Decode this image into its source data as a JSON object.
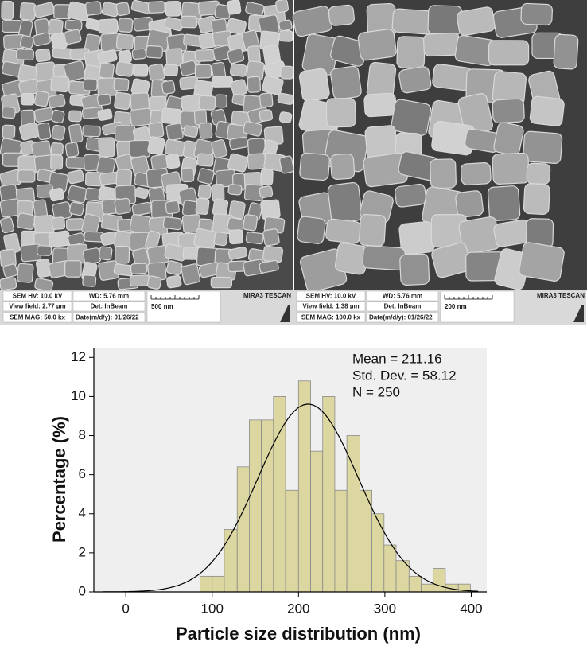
{
  "sem_panels": [
    {
      "hv": "SEM HV: 10.0 kV",
      "wd": "WD: 5.76 mm",
      "brand": "MIRA3 TESCAN",
      "view_field": "View field: 2.77 µm",
      "detector": "Det: InBeam",
      "scale": "500 nm",
      "mag": "SEM MAG: 50.0 kx",
      "date": "Date(m/d/y): 01/26/22"
    },
    {
      "hv": "SEM HV: 10.0 kV",
      "wd": "WD: 5.76 mm",
      "brand": "MIRA3 TESCAN",
      "view_field": "View field: 1.38 µm",
      "detector": "Det: InBeam",
      "scale": "200 nm",
      "mag": "SEM MAG: 100.0 kx",
      "date": "Date(m/d/y): 01/26/22"
    }
  ],
  "chart_data": {
    "type": "histogram",
    "xlabel": "Particle size distribution (nm)",
    "ylabel": "Percentage (%)",
    "annotations": [
      "Mean = 211.16",
      "Std. Dev. = 58.12",
      "N = 250"
    ],
    "bins": [
      86,
      100,
      114,
      129,
      143,
      157,
      171,
      185,
      200,
      214,
      228,
      242,
      256,
      271,
      285,
      299,
      313,
      328,
      342,
      356,
      370,
      385,
      399
    ],
    "values": [
      0.8,
      0.8,
      3.2,
      6.4,
      8.8,
      8.8,
      10,
      5.2,
      10.8,
      7.2,
      10,
      5.2,
      8,
      5.2,
      4,
      2.4,
      1.6,
      0.8,
      0.4,
      1.2,
      0.4,
      0.4
    ],
    "color": "#dcd7a0",
    "fit": {
      "mean": 211.16,
      "sd": 58.12
    },
    "xlim": [
      -37,
      418
    ],
    "ylim": [
      0,
      12.5
    ],
    "xticks": [
      0,
      100,
      200,
      300,
      400
    ],
    "yticks": [
      0,
      2,
      4,
      6,
      8,
      10,
      12
    ]
  }
}
